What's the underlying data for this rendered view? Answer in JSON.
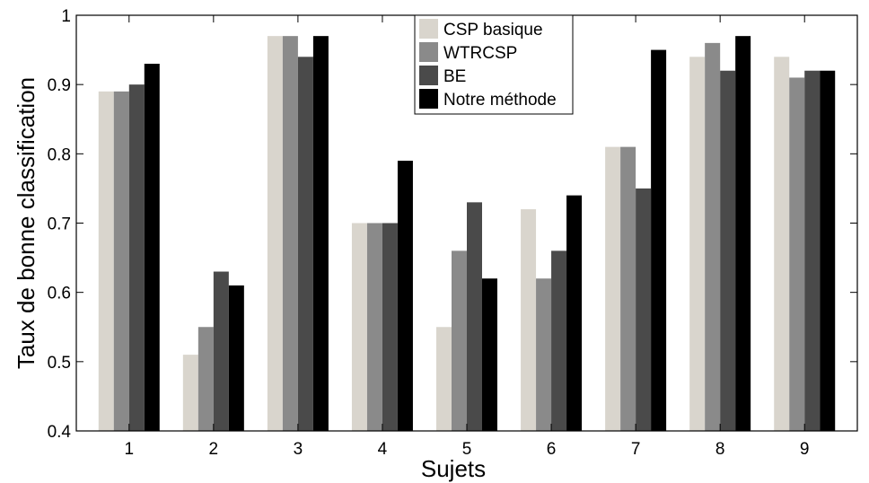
{
  "chart_data": {
    "type": "bar",
    "xlabel": "Sujets",
    "ylabel": "Taux de bonne classification",
    "categories": [
      "1",
      "2",
      "3",
      "4",
      "5",
      "6",
      "7",
      "8",
      "9"
    ],
    "ylim": [
      0.4,
      1
    ],
    "yticks": [
      "0.4",
      "0.5",
      "0.6",
      "0.7",
      "0.8",
      "0.9",
      "1"
    ],
    "legend_position": "top-center",
    "grid": false,
    "series": [
      {
        "name": "CSP basique",
        "color": "#d9d5cd",
        "values": [
          0.89,
          0.51,
          0.97,
          0.7,
          0.55,
          0.72,
          0.81,
          0.94,
          0.94
        ]
      },
      {
        "name": "WTRCSP",
        "color": "#8a8a8a",
        "values": [
          0.89,
          0.55,
          0.97,
          0.7,
          0.66,
          0.62,
          0.81,
          0.96,
          0.91
        ]
      },
      {
        "name": "BE",
        "color": "#4a4a4a",
        "values": [
          0.9,
          0.63,
          0.94,
          0.7,
          0.73,
          0.66,
          0.75,
          0.92,
          0.92
        ]
      },
      {
        "name": "Notre méthode",
        "color": "#000000",
        "values": [
          0.93,
          0.61,
          0.97,
          0.79,
          0.62,
          0.74,
          0.95,
          0.97,
          0.92
        ]
      }
    ]
  }
}
